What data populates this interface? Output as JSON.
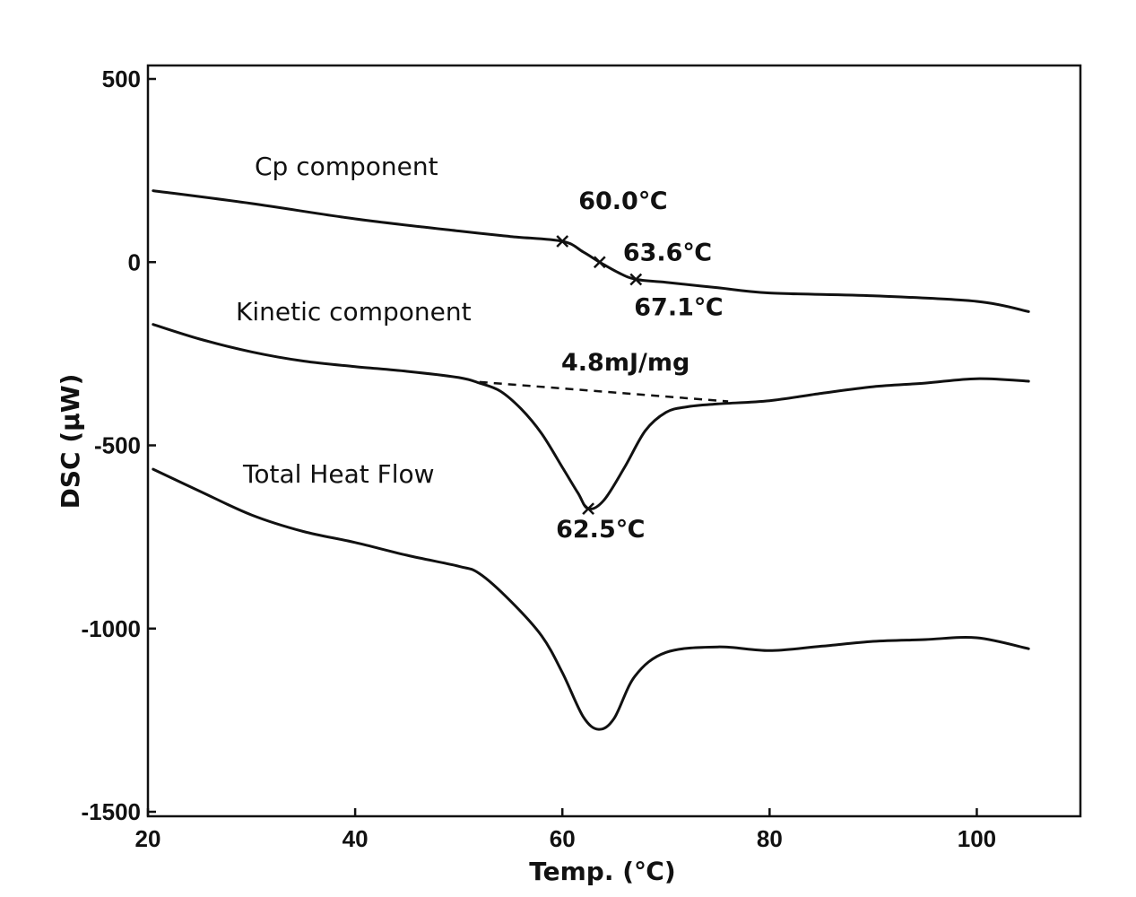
{
  "chart_data": {
    "type": "line",
    "xlabel": "Temp. (℃)",
    "ylabel": "DSC (μW)",
    "xlim": [
      20,
      110
    ],
    "ylim": [
      -1500,
      500
    ],
    "x_ticks": [
      20,
      40,
      60,
      80,
      100
    ],
    "x_tick_labels": [
      "20",
      "40",
      "60",
      "80",
      "100"
    ],
    "y_ticks": [
      500,
      0,
      -500,
      -1000,
      -1500
    ],
    "y_tick_labels": [
      "500",
      "0",
      "-500",
      "-1000",
      "-1500"
    ],
    "grid": false,
    "series": [
      {
        "name": "Cp component",
        "x": [
          20.5,
          30,
          40,
          50,
          55,
          60,
          62,
          63.6,
          65.5,
          67.1,
          70,
          75,
          80,
          90,
          100,
          105
        ],
        "y": [
          195,
          160,
          118,
          85,
          70,
          57,
          28,
          0,
          -30,
          -47,
          -55,
          -70,
          -84,
          -92,
          -107,
          -135
        ]
      },
      {
        "name": "Kinetic component",
        "x": [
          20.5,
          25,
          30,
          35,
          40,
          45,
          50,
          52,
          54,
          56,
          58,
          60,
          61.5,
          62.5,
          64,
          66,
          68,
          70,
          72,
          75,
          80,
          85,
          90,
          95,
          100,
          105
        ],
        "y": [
          -170,
          -210,
          -245,
          -270,
          -285,
          -298,
          -315,
          -330,
          -352,
          -400,
          -468,
          -560,
          -630,
          -673,
          -650,
          -560,
          -460,
          -410,
          -395,
          -387,
          -378,
          -358,
          -340,
          -330,
          -318,
          -325
        ]
      },
      {
        "name": "Total Heat Flow",
        "x": [
          20.5,
          25,
          30,
          35,
          40,
          45,
          50,
          52,
          55,
          58,
          60,
          62,
          63.5,
          65,
          67,
          70,
          75,
          80,
          85,
          90,
          95,
          100,
          105
        ],
        "y": [
          -565,
          -625,
          -690,
          -735,
          -765,
          -800,
          -830,
          -850,
          -925,
          -1020,
          -1120,
          -1240,
          -1275,
          -1245,
          -1130,
          -1065,
          -1050,
          -1060,
          -1048,
          -1035,
          -1030,
          -1025,
          -1055
        ]
      }
    ],
    "baseline": {
      "x": [
        52,
        76
      ],
      "y": [
        -327,
        -380
      ]
    },
    "markers": [
      {
        "x": 60.0,
        "y": 57,
        "label": "60.0℃"
      },
      {
        "x": 63.6,
        "y": 0,
        "label": "63.6℃"
      },
      {
        "x": 67.1,
        "y": -47,
        "label": "67.1℃"
      },
      {
        "x": 62.5,
        "y": -673,
        "label": "62.5℃"
      }
    ],
    "enthalpy_annotation": "4.8mJ/mg"
  }
}
